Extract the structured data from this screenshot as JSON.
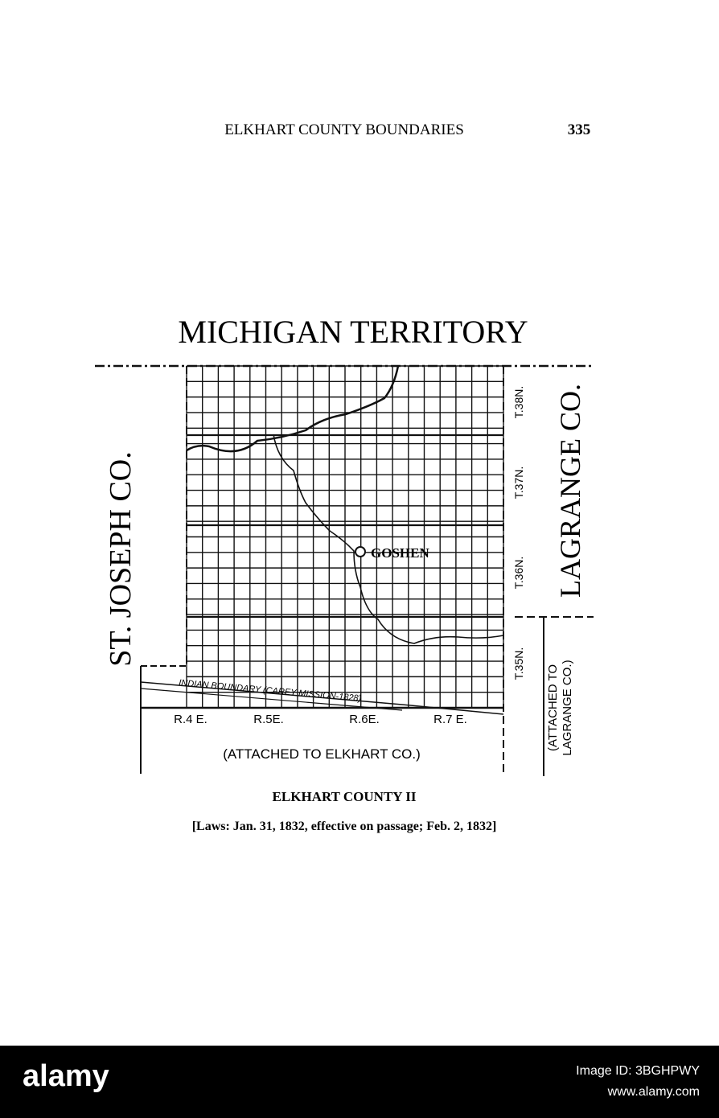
{
  "header": {
    "title": "ELKHART COUNTY BOUNDARIES",
    "page_number": "335"
  },
  "map": {
    "title": "MICHIGAN TERRITORY",
    "west_label": "ST. JOSEPH CO.",
    "east_label": "LAGRANGE CO.",
    "townships": [
      "T.38N.",
      "T.37N.",
      "T.36N.",
      "T.35N."
    ],
    "ranges": [
      "R.4 E.",
      "R.5E.",
      "R.6E.",
      "R.7 E."
    ],
    "town": "GOSHEN",
    "indian_boundary": "INDIAN BOUNDARY (CAREY MISSION-1828)",
    "south_note": "(ATTACHED TO ELKHART CO.)",
    "east_note": [
      "(ATTACHED TO",
      "LAGRANGE CO.)"
    ]
  },
  "caption": {
    "title": "ELKHART COUNTY II",
    "text": "[Laws: Jan. 31, 1832, effective on passage; Feb. 2, 1832]"
  },
  "footer": {
    "brand": "alamy",
    "image_id": "Image ID: 3BGHPWY",
    "url": "www.alamy.com"
  }
}
